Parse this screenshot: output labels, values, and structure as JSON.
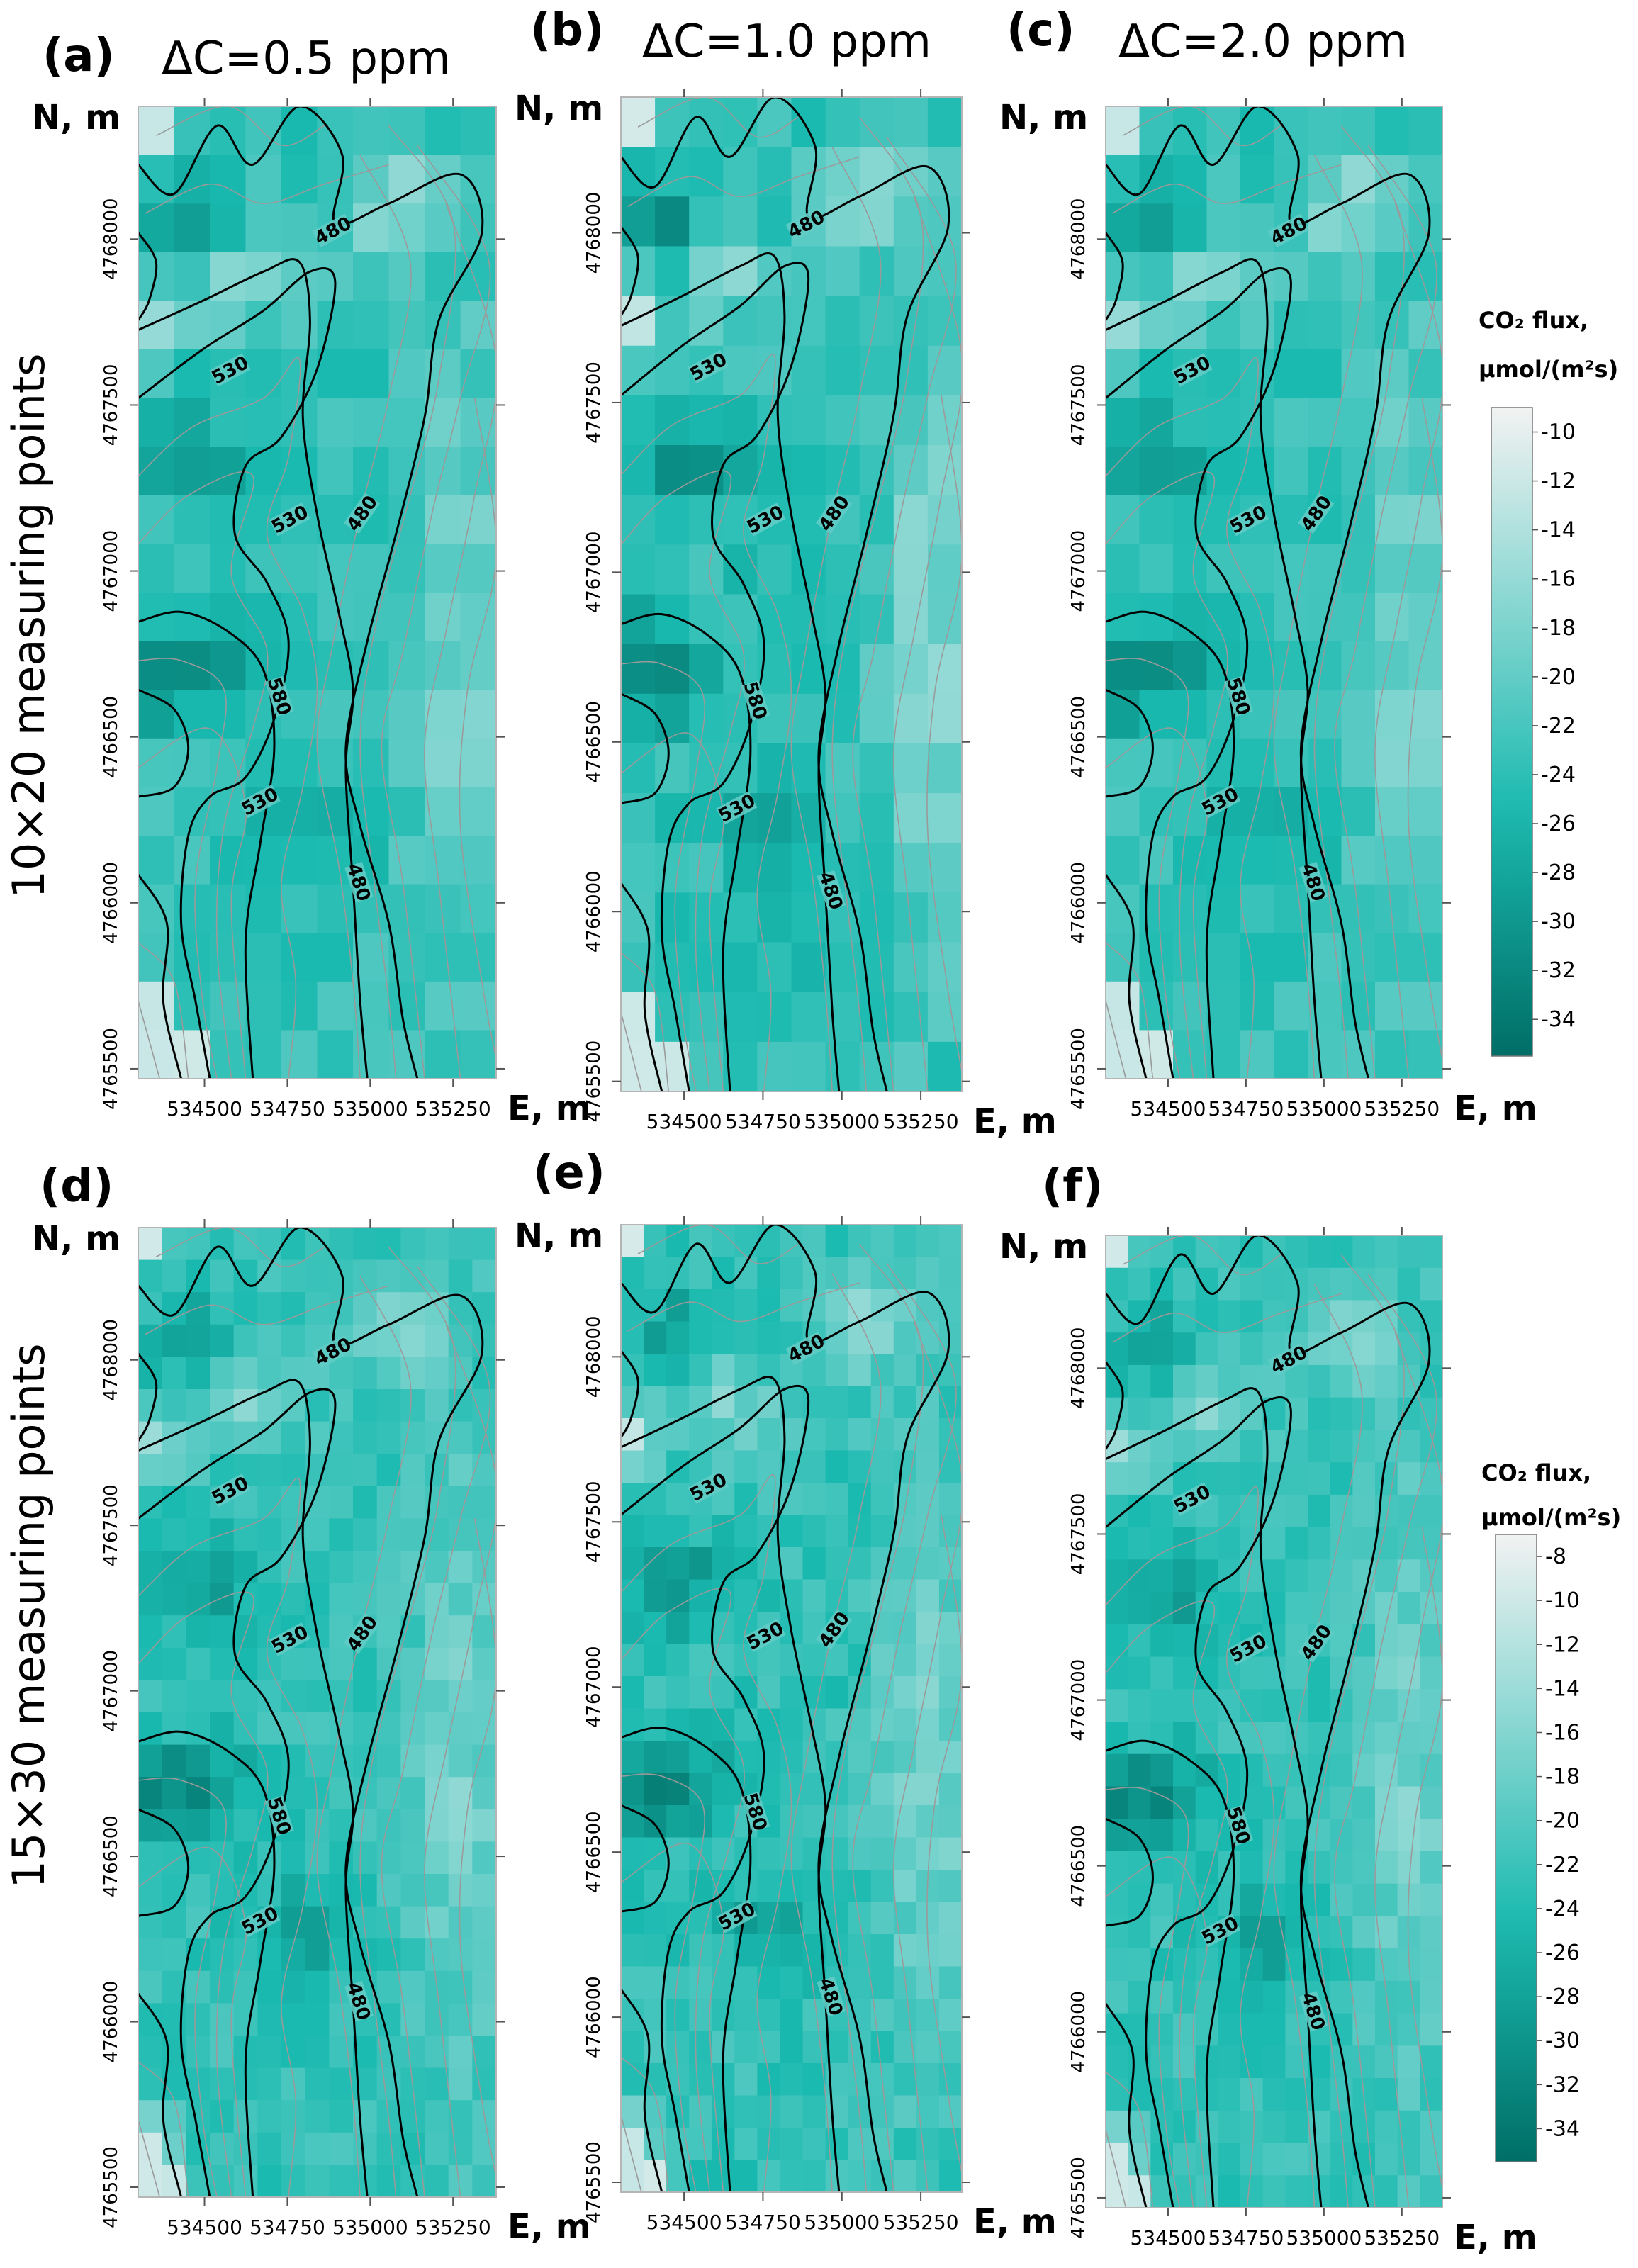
{
  "figure": {
    "row_labels": [
      "10×20 measuring points",
      "15×30 measuring points"
    ],
    "axis_labels": {
      "north": "N, m",
      "east": "E, m"
    },
    "palette": {
      "light": "#f2f2f2",
      "mid": "#1abab0",
      "dark": "#006e66",
      "grid": "#9a9a9a",
      "contour": "#000000"
    }
  },
  "chart_data": [
    {
      "type": "heatmap",
      "panel": "(a)",
      "title": "ΔC=0.5 ppm",
      "row": 0,
      "col": 0,
      "grid": [
        10,
        20
      ],
      "xlabel": "E, m",
      "ylabel": "N, m",
      "xticks": [
        534500,
        534750,
        535000,
        535250
      ],
      "yticks": [
        4765500,
        4766000,
        4766500,
        4767000,
        4767500,
        4768000
      ],
      "xlim": [
        534300,
        535380
      ],
      "ylim": [
        4765470,
        4768400
      ],
      "value_range": [
        -35.5,
        -9
      ],
      "seed": 3,
      "darkness": 1.0,
      "contour_labels": [
        {
          "text": "480",
          "e": 534890,
          "n": 4768020
        },
        {
          "text": "530",
          "e": 534580,
          "n": 4767600
        },
        {
          "text": "530",
          "e": 534760,
          "n": 4767150
        },
        {
          "text": "480",
          "e": 534980,
          "n": 4767170
        },
        {
          "text": "580",
          "e": 534720,
          "n": 4766620
        },
        {
          "text": "530",
          "e": 534670,
          "n": 4766300
        },
        {
          "text": "480",
          "e": 534960,
          "n": 4766060
        }
      ]
    },
    {
      "type": "heatmap",
      "panel": "(b)",
      "title": "ΔC=1.0 ppm",
      "row": 0,
      "col": 1,
      "grid": [
        10,
        20
      ],
      "xlabel": "E, m",
      "ylabel": "N, m",
      "xticks": [
        534500,
        534750,
        535000,
        535250
      ],
      "yticks": [
        4765500,
        4766000,
        4766500,
        4767000,
        4767500,
        4768000
      ],
      "xlim": [
        534300,
        535380
      ],
      "ylim": [
        4765470,
        4768400
      ],
      "value_range": [
        -35.5,
        -9
      ],
      "seed": 7,
      "darkness": 1.15,
      "contour_labels": [
        {
          "text": "480",
          "e": 534890,
          "n": 4768020
        },
        {
          "text": "530",
          "e": 534580,
          "n": 4767600
        },
        {
          "text": "530",
          "e": 534760,
          "n": 4767150
        },
        {
          "text": "480",
          "e": 534980,
          "n": 4767170
        },
        {
          "text": "580",
          "e": 534720,
          "n": 4766620
        },
        {
          "text": "530",
          "e": 534670,
          "n": 4766300
        },
        {
          "text": "480",
          "e": 534960,
          "n": 4766060
        }
      ]
    },
    {
      "type": "heatmap",
      "panel": "(c)",
      "title": "ΔC=2.0 ppm",
      "row": 0,
      "col": 2,
      "grid": [
        10,
        20
      ],
      "xlabel": "E, m",
      "ylabel": "N, m",
      "xticks": [
        534500,
        534750,
        535000,
        535250
      ],
      "yticks": [
        4765500,
        4766000,
        4766500,
        4767000,
        4767500,
        4768000
      ],
      "xlim": [
        534300,
        535380
      ],
      "ylim": [
        4765470,
        4768400
      ],
      "value_range": [
        -35.5,
        -9
      ],
      "seed": 3,
      "darkness": 1.0,
      "contour_labels": [
        {
          "text": "480",
          "e": 534890,
          "n": 4768020
        },
        {
          "text": "530",
          "e": 534580,
          "n": 4767600
        },
        {
          "text": "530",
          "e": 534760,
          "n": 4767150
        },
        {
          "text": "480",
          "e": 534980,
          "n": 4767170
        },
        {
          "text": "580",
          "e": 534720,
          "n": 4766620
        },
        {
          "text": "530",
          "e": 534670,
          "n": 4766300
        },
        {
          "text": "480",
          "e": 534960,
          "n": 4766060
        }
      ]
    },
    {
      "type": "heatmap",
      "panel": "(d)",
      "title": "",
      "row": 1,
      "col": 0,
      "grid": [
        15,
        30
      ],
      "xlabel": "E, m",
      "ylabel": "N, m",
      "xticks": [
        534500,
        534750,
        535000,
        535250
      ],
      "yticks": [
        4765500,
        4766000,
        4766500,
        4767000,
        4767500,
        4768000
      ],
      "xlim": [
        534300,
        535380
      ],
      "ylim": [
        4765470,
        4768400
      ],
      "value_range": [
        -35.5,
        -7
      ],
      "seed": 11,
      "darkness": 0.95,
      "contour_labels": [
        {
          "text": "480",
          "e": 534890,
          "n": 4768020
        },
        {
          "text": "530",
          "e": 534580,
          "n": 4767600
        },
        {
          "text": "530",
          "e": 534760,
          "n": 4767150
        },
        {
          "text": "480",
          "e": 534980,
          "n": 4767170
        },
        {
          "text": "580",
          "e": 534720,
          "n": 4766620
        },
        {
          "text": "530",
          "e": 534670,
          "n": 4766300
        },
        {
          "text": "480",
          "e": 534960,
          "n": 4766060
        }
      ]
    },
    {
      "type": "heatmap",
      "panel": "(e)",
      "title": "",
      "row": 1,
      "col": 1,
      "grid": [
        15,
        30
      ],
      "xlabel": "E, m",
      "ylabel": "N, m",
      "xticks": [
        534500,
        534750,
        535000,
        535250
      ],
      "yticks": [
        4765500,
        4766000,
        4766500,
        4767000,
        4767500,
        4768000
      ],
      "xlim": [
        534300,
        535380
      ],
      "ylim": [
        4765470,
        4768400
      ],
      "value_range": [
        -35.5,
        -7
      ],
      "seed": 17,
      "darkness": 1.05,
      "contour_labels": [
        {
          "text": "480",
          "e": 534890,
          "n": 4768020
        },
        {
          "text": "530",
          "e": 534580,
          "n": 4767600
        },
        {
          "text": "530",
          "e": 534760,
          "n": 4767150
        },
        {
          "text": "480",
          "e": 534980,
          "n": 4767170
        },
        {
          "text": "580",
          "e": 534720,
          "n": 4766620
        },
        {
          "text": "530",
          "e": 534670,
          "n": 4766300
        },
        {
          "text": "480",
          "e": 534960,
          "n": 4766060
        }
      ]
    },
    {
      "type": "heatmap",
      "panel": "(f)",
      "title": "",
      "row": 1,
      "col": 2,
      "grid": [
        15,
        30
      ],
      "xlabel": "E, m",
      "ylabel": "N, m",
      "xticks": [
        534500,
        534750,
        535000,
        535250
      ],
      "yticks": [
        4765500,
        4766000,
        4766500,
        4767000,
        4767500,
        4768000
      ],
      "xlim": [
        534300,
        535380
      ],
      "ylim": [
        4765470,
        4768400
      ],
      "value_range": [
        -35.5,
        -7
      ],
      "seed": 11,
      "darkness": 0.95,
      "contour_labels": [
        {
          "text": "480",
          "e": 534890,
          "n": 4768020
        },
        {
          "text": "530",
          "e": 534580,
          "n": 4767600
        },
        {
          "text": "530",
          "e": 534760,
          "n": 4767150
        },
        {
          "text": "480",
          "e": 534980,
          "n": 4767170
        },
        {
          "text": "580",
          "e": 534720,
          "n": 4766620
        },
        {
          "text": "530",
          "e": 534670,
          "n": 4766300
        },
        {
          "text": "480",
          "e": 534960,
          "n": 4766060
        }
      ]
    }
  ],
  "colorbars": [
    {
      "row": 0,
      "title": [
        "CO₂ flux,",
        "μmol/(m²s)"
      ],
      "ticks": [
        -10,
        -12,
        -14,
        -16,
        -18,
        -20,
        -22,
        -24,
        -26,
        -28,
        -30,
        -32,
        -34
      ],
      "range": [
        -35.5,
        -9
      ]
    },
    {
      "row": 1,
      "title": [
        "CO₂ flux,",
        "μmol/(m²s)"
      ],
      "ticks": [
        -8,
        -10,
        -12,
        -14,
        -16,
        -18,
        -20,
        -22,
        -24,
        -26,
        -28,
        -30,
        -32,
        -34
      ],
      "range": [
        -35.5,
        -7
      ]
    }
  ]
}
